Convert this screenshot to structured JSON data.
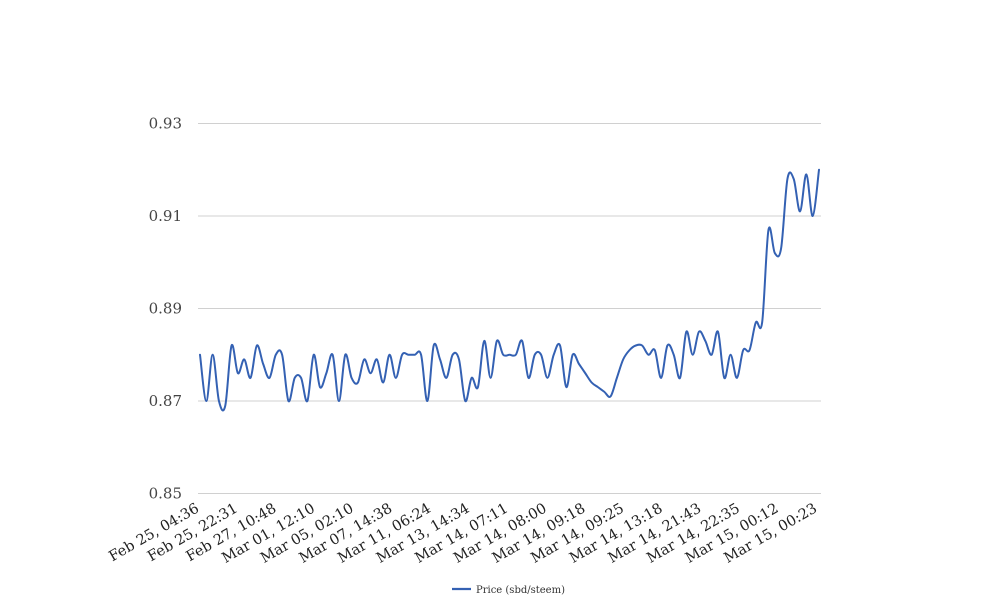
{
  "chart_data": {
    "type": "line",
    "title": "",
    "xlabel": "",
    "ylabel": "",
    "ylim": [
      0.85,
      0.93
    ],
    "y_ticks": [
      "0.93",
      "0.91",
      "0.89",
      "0.87",
      "0.85"
    ],
    "x_tick_labels": [
      "Feb 25, 04:36",
      "Feb 25, 22:31",
      "Feb 27, 10:48",
      "Mar 01, 12:10",
      "Mar 05, 02:10",
      "Mar 07, 14:38",
      "Mar 11, 06:24",
      "Mar 13, 14:34",
      "Mar 14, 07:11",
      "Mar 14, 08:00",
      "Mar 14, 09:18",
      "Mar 14, 09:25",
      "Mar 14, 13:18",
      "Mar 14, 21:43",
      "Mar 14, 22:35",
      "Mar 15, 00:12",
      "Mar 15, 00:23"
    ],
    "grid": true,
    "legend_position": "bottom",
    "series": [
      {
        "name": "Price (sbd/steem)",
        "color": "#3461b3",
        "values": [
          0.88,
          0.87,
          0.88,
          0.87,
          0.869,
          0.882,
          0.876,
          0.879,
          0.875,
          0.882,
          0.878,
          0.875,
          0.88,
          0.88,
          0.87,
          0.875,
          0.875,
          0.87,
          0.88,
          0.873,
          0.876,
          0.88,
          0.87,
          0.88,
          0.875,
          0.874,
          0.879,
          0.876,
          0.879,
          0.874,
          0.88,
          0.875,
          0.88,
          0.88,
          0.88,
          0.88,
          0.87,
          0.882,
          0.879,
          0.875,
          0.88,
          0.879,
          0.87,
          0.875,
          0.873,
          0.883,
          0.875,
          0.883,
          0.88,
          0.88,
          0.88,
          0.883,
          0.875,
          0.88,
          0.88,
          0.875,
          0.88,
          0.882,
          0.873,
          0.88,
          0.878,
          0.876,
          0.874,
          0.873,
          0.872,
          0.871,
          0.875,
          0.879,
          0.881,
          0.882,
          0.882,
          0.88,
          0.881,
          0.875,
          0.882,
          0.88,
          0.875,
          0.885,
          0.88,
          0.885,
          0.883,
          0.88,
          0.885,
          0.875,
          0.88,
          0.875,
          0.881,
          0.881,
          0.887,
          0.887,
          0.907,
          0.902,
          0.903,
          0.918,
          0.918,
          0.911,
          0.919,
          0.91,
          0.92
        ]
      }
    ]
  }
}
